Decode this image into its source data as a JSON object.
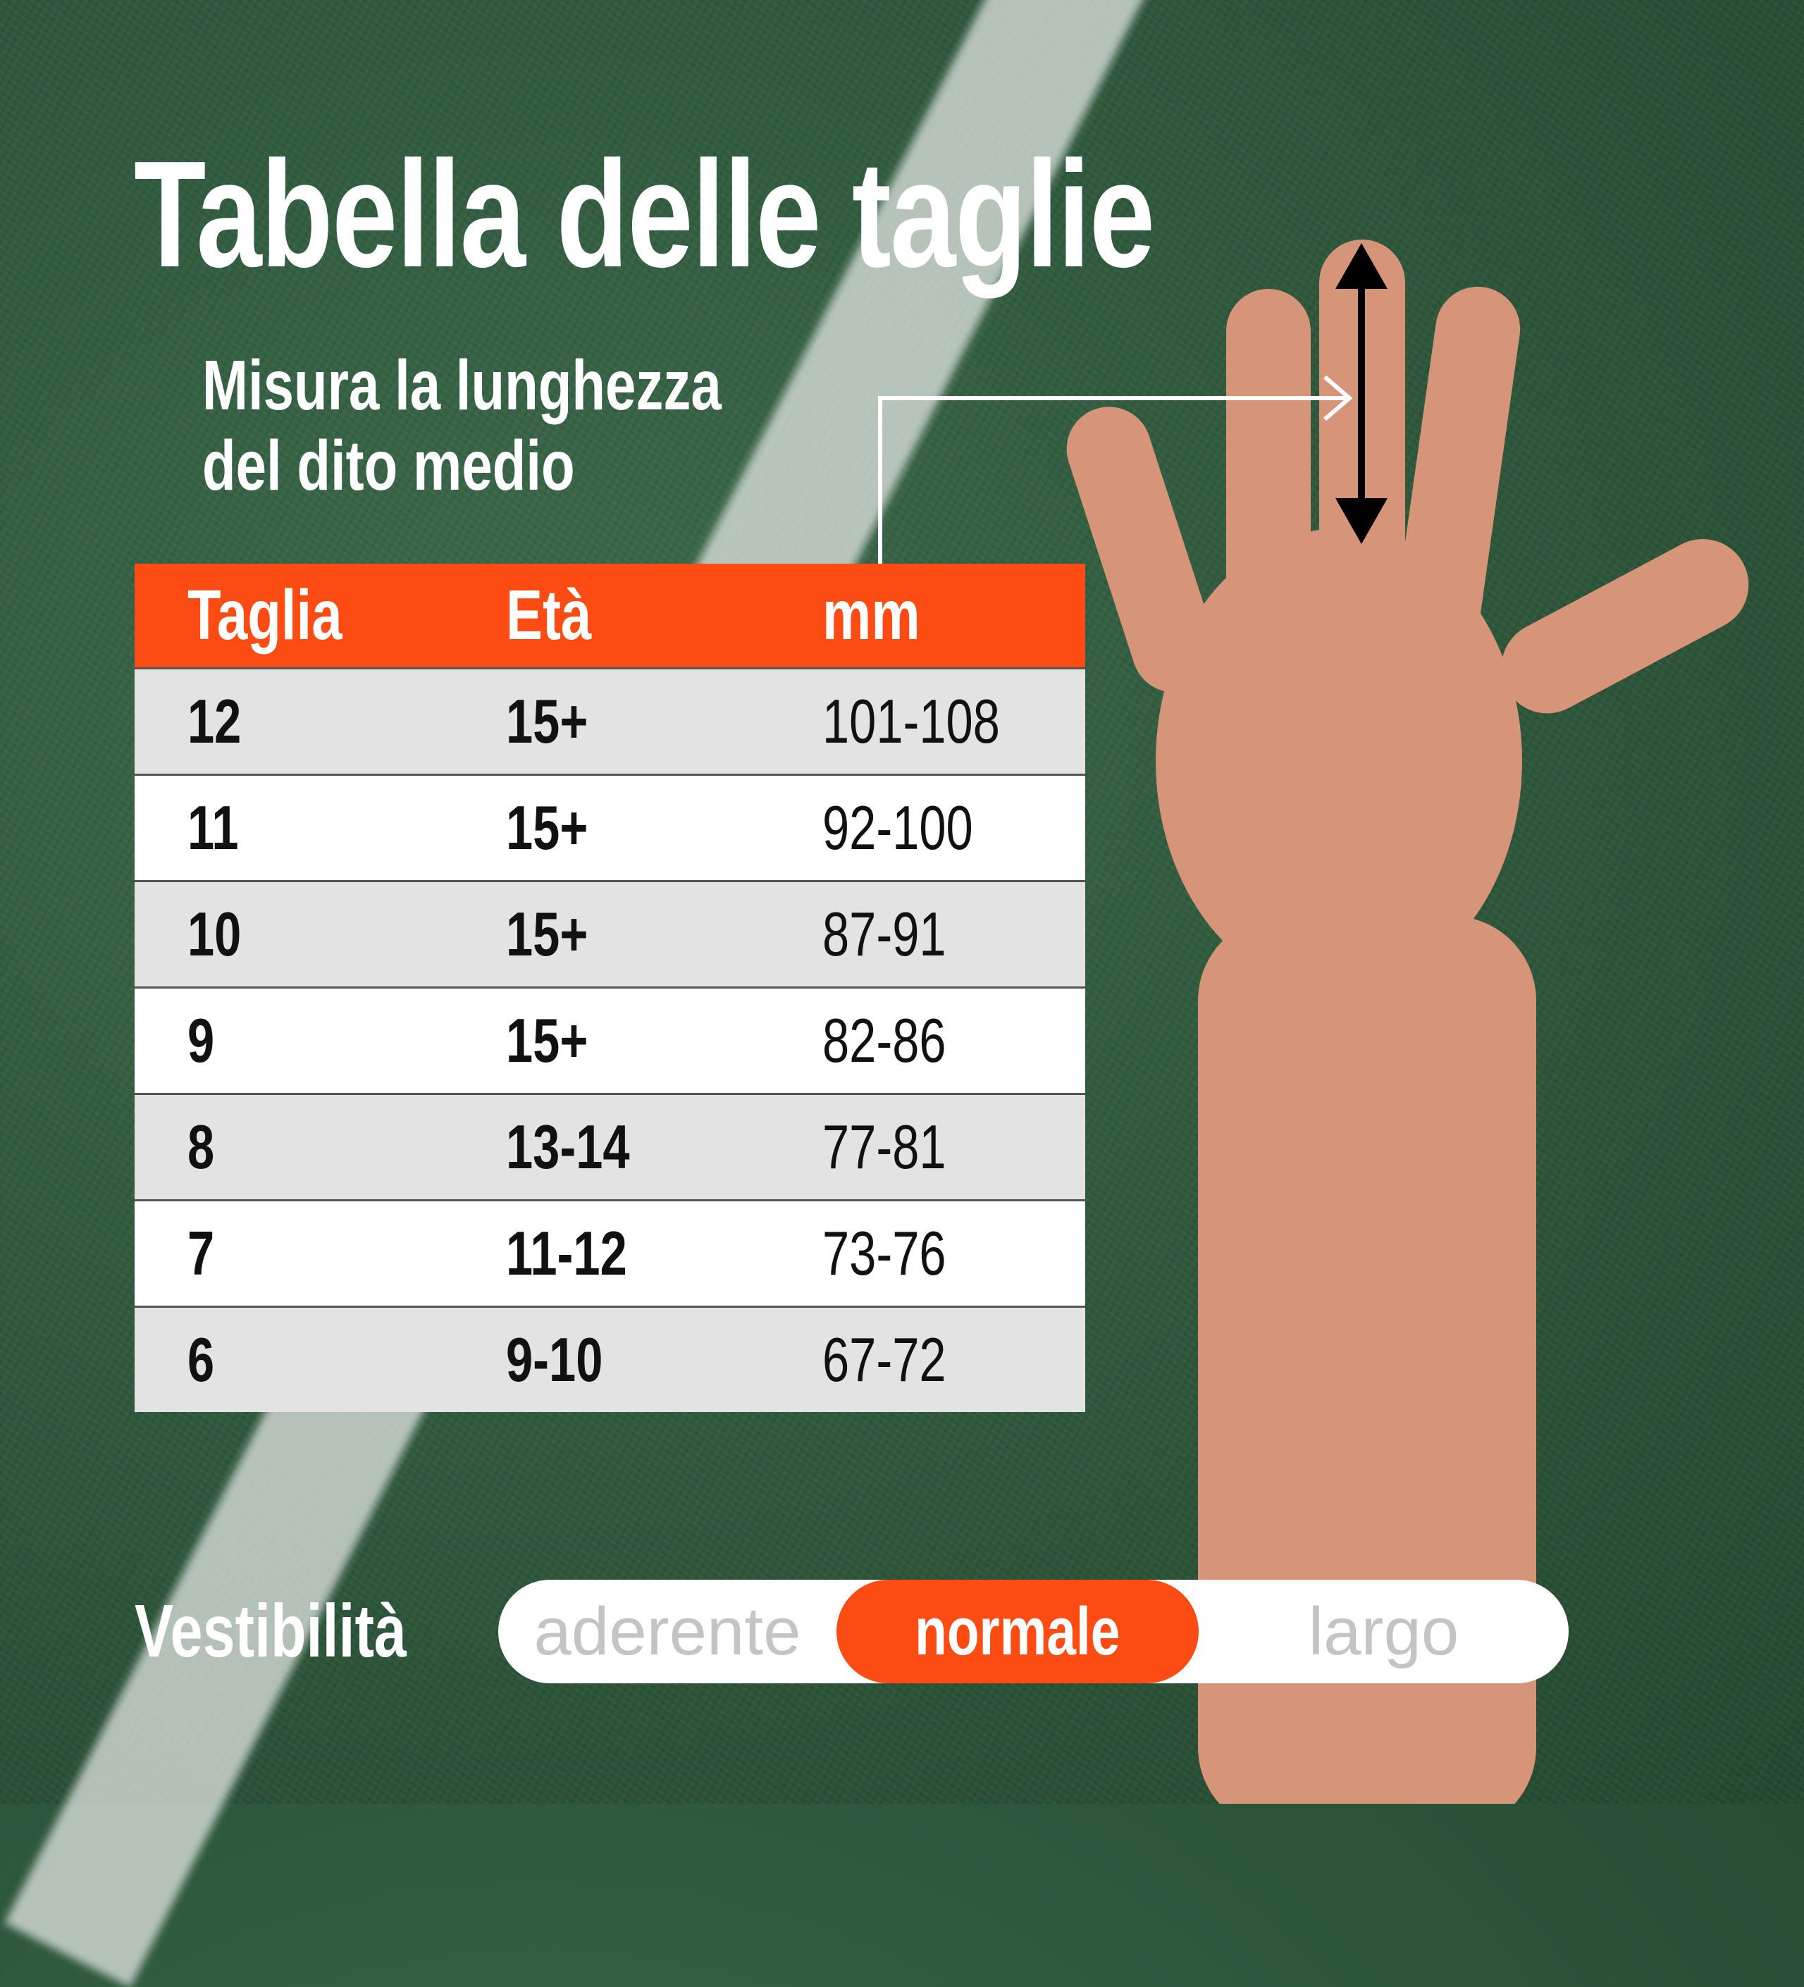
{
  "title": "Tabella delle taglie",
  "instruction": [
    "Misura la lunghezza",
    "del dito medio"
  ],
  "table": {
    "headers": [
      "Taglia",
      "Età",
      "mm"
    ],
    "rows": [
      [
        "12",
        "15+",
        "101-108"
      ],
      [
        "11",
        "15+",
        "92-100"
      ],
      [
        "10",
        "15+",
        "87-91"
      ],
      [
        "9",
        "15+",
        "82-86"
      ],
      [
        "8",
        "13-14",
        "77-81"
      ],
      [
        "7",
        "11-12",
        "73-76"
      ],
      [
        "6",
        "9-10",
        "67-72"
      ]
    ]
  },
  "fit": {
    "label": "Vestibilità",
    "options": [
      "aderente",
      "normale",
      "largo"
    ],
    "selected": "normale"
  },
  "colors": {
    "accent": "#fc4c13",
    "row_alt": "#e3e3e3"
  }
}
